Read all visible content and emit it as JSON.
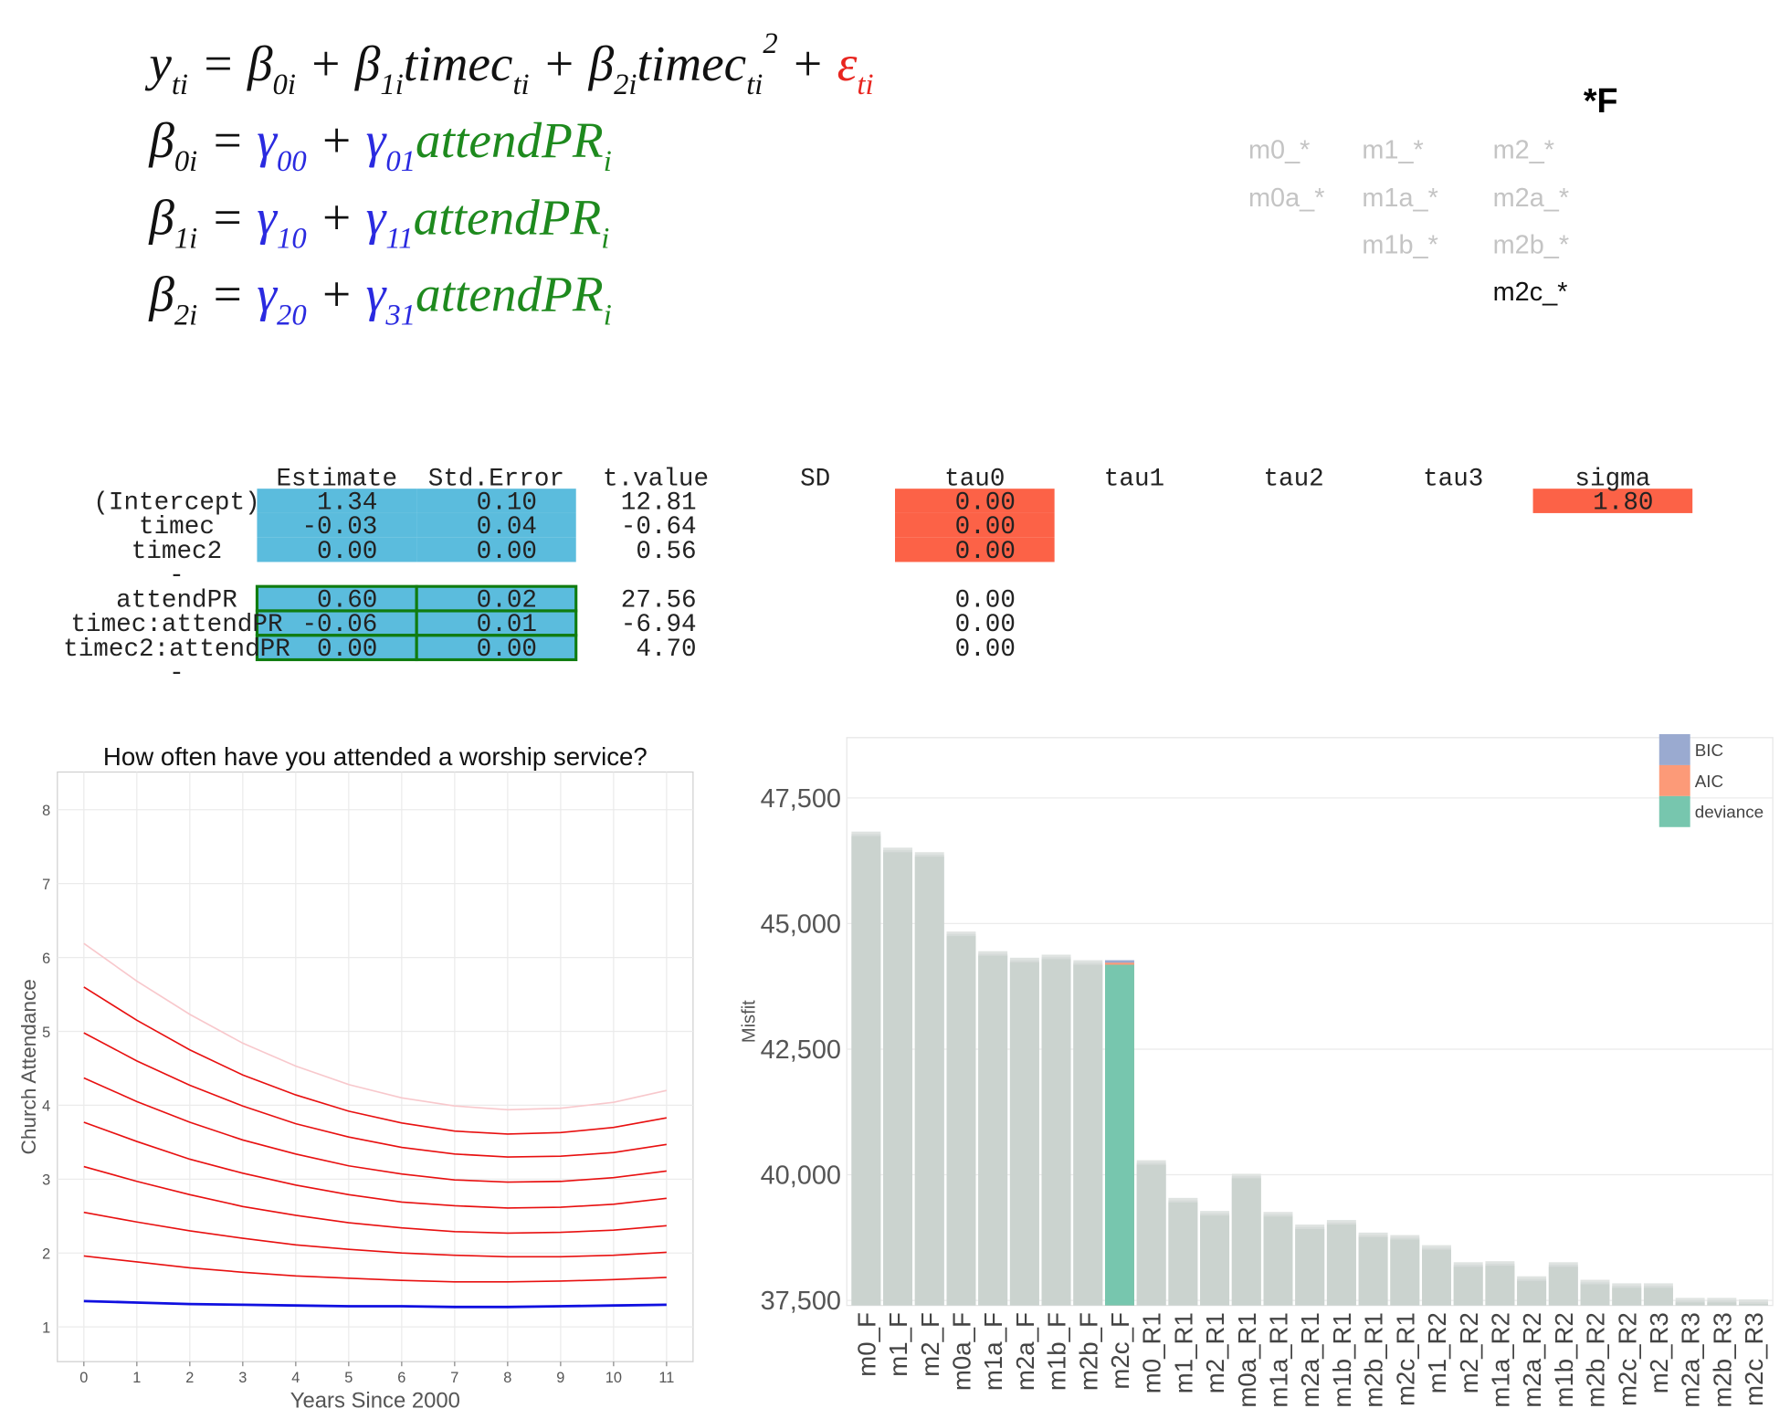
{
  "equations": [
    [
      {
        "text": "y",
        "sub": "ti"
      },
      {
        "text": " = "
      },
      {
        "text": "β",
        "sub": "0i"
      },
      {
        "text": " + "
      },
      {
        "text": "β",
        "sub": "1i"
      },
      {
        "text": "timec",
        "sub": "ti"
      },
      {
        "text": " + "
      },
      {
        "text": "β",
        "sub": "2i"
      },
      {
        "text": "timec",
        "sub": "ti",
        "sup": "2"
      },
      {
        "text": " + "
      },
      {
        "text": "ε",
        "sub": "ti",
        "color": "#e8251f"
      }
    ],
    [
      {
        "text": "β",
        "sub": "0i"
      },
      {
        "text": " = "
      },
      {
        "text": "γ",
        "sub": "00",
        "color": "#2a2ae0"
      },
      {
        "text": " + "
      },
      {
        "text": "γ",
        "sub": "01",
        "color": "#2a2ae0"
      },
      {
        "text": "attendPR",
        "sub": "i",
        "color": "#1e8a1e"
      }
    ],
    [
      {
        "text": "β",
        "sub": "1i"
      },
      {
        "text": " = "
      },
      {
        "text": "γ",
        "sub": "10",
        "color": "#2a2ae0"
      },
      {
        "text": " + "
      },
      {
        "text": "γ",
        "sub": "11",
        "color": "#2a2ae0"
      },
      {
        "text": "attendPR",
        "sub": "i",
        "color": "#1e8a1e"
      }
    ],
    [
      {
        "text": "β",
        "sub": "2i"
      },
      {
        "text": " = "
      },
      {
        "text": "γ",
        "sub": "20",
        "color": "#2a2ae0"
      },
      {
        "text": " + "
      },
      {
        "text": "γ",
        "sub": "31",
        "color": "#2a2ae0"
      },
      {
        "text": "attendPR",
        "sub": "i",
        "color": "#1e8a1e"
      }
    ]
  ],
  "models": {
    "heading": "*F",
    "rows": [
      [
        "m0_*",
        "m1_*",
        "m2_*"
      ],
      [
        "m0a_*",
        "m1a_*",
        "m2a_*"
      ],
      [
        null,
        "m1b_*",
        "m2b_*"
      ],
      [
        null,
        null,
        "m2c_*"
      ]
    ],
    "active": [
      3,
      2
    ]
  },
  "table": {
    "columns": [
      "Estimate",
      "Std.Error",
      "t.value",
      "SD",
      "tau0",
      "tau1",
      "tau2",
      "tau3",
      "sigma"
    ],
    "rows": [
      {
        "name": "(Intercept)",
        "cells": [
          "1.34",
          "0.10",
          "12.81",
          null,
          "0.00",
          null,
          null,
          null,
          "1.80"
        ]
      },
      {
        "name": "timec",
        "cells": [
          "-0.03",
          "0.04",
          "-0.64",
          null,
          "0.00",
          null,
          null,
          null,
          null
        ]
      },
      {
        "name": "timec2",
        "cells": [
          "0.00",
          "0.00",
          "0.56",
          null,
          "0.00",
          null,
          null,
          null,
          null
        ]
      },
      {
        "name": "-",
        "cells": [
          null,
          null,
          null,
          null,
          null,
          null,
          null,
          null,
          null
        ]
      },
      {
        "name": "attendPR",
        "cells": [
          "0.60",
          "0.02",
          "27.56",
          null,
          "0.00",
          null,
          null,
          null,
          null
        ]
      },
      {
        "name": "timec:attendPR",
        "cells": [
          "-0.06",
          "0.01",
          "-6.94",
          null,
          "0.00",
          null,
          null,
          null,
          null
        ]
      },
      {
        "name": "timec2:attendPR",
        "cells": [
          "0.00",
          "0.00",
          "4.70",
          null,
          "0.00",
          null,
          null,
          null,
          null
        ]
      },
      {
        "name": "-",
        "cells": [
          null,
          null,
          null,
          null,
          null,
          null,
          null,
          null,
          null
        ]
      }
    ],
    "highlights": [
      {
        "fill": "#5bbcdd",
        "rows": [
          0,
          1,
          2,
          4,
          5,
          6
        ],
        "cols": [
          0,
          1
        ]
      },
      {
        "fill": "#fc6247",
        "rows": [
          0,
          1,
          2
        ],
        "cols": [
          4
        ]
      },
      {
        "fill": "#fc6247",
        "rows": [
          0
        ],
        "cols": [
          8
        ]
      },
      {
        "stroke": "#107c10",
        "rows": [
          4,
          5,
          6
        ],
        "cols": [
          0,
          1
        ]
      }
    ]
  },
  "chart_data": [
    {
      "type": "line",
      "title": "How often have you attended a worship service?",
      "x_label": "Years Since 2000",
      "y_label": "Church Attendance",
      "x": [
        0,
        1,
        2,
        3,
        4,
        5,
        6,
        7,
        8,
        9,
        10,
        11
      ],
      "series": [
        {
          "color": "#1010e0",
          "values": [
            1.35,
            1.33,
            1.31,
            1.3,
            1.29,
            1.28,
            1.28,
            1.27,
            1.27,
            1.28,
            1.29,
            1.3
          ]
        },
        {
          "color": "#e81010",
          "values": [
            1.96,
            1.88,
            1.8,
            1.74,
            1.69,
            1.66,
            1.63,
            1.61,
            1.61,
            1.62,
            1.64,
            1.67
          ]
        },
        {
          "color": "#e81010",
          "values": [
            2.55,
            2.42,
            2.3,
            2.2,
            2.11,
            2.05,
            2.0,
            1.97,
            1.95,
            1.95,
            1.97,
            2.01
          ]
        },
        {
          "color": "#e81010",
          "values": [
            3.17,
            2.97,
            2.79,
            2.63,
            2.51,
            2.41,
            2.34,
            2.29,
            2.27,
            2.28,
            2.31,
            2.37
          ]
        },
        {
          "color": "#e81010",
          "values": [
            3.77,
            3.51,
            3.27,
            3.08,
            2.92,
            2.79,
            2.69,
            2.64,
            2.61,
            2.62,
            2.66,
            2.74
          ]
        },
        {
          "color": "#e81010",
          "values": [
            4.37,
            4.05,
            3.77,
            3.53,
            3.34,
            3.18,
            3.07,
            2.99,
            2.96,
            2.97,
            3.02,
            3.11
          ]
        },
        {
          "color": "#e81010",
          "values": [
            4.98,
            4.6,
            4.27,
            3.99,
            3.75,
            3.57,
            3.43,
            3.34,
            3.3,
            3.31,
            3.36,
            3.47
          ]
        },
        {
          "color": "#e81010",
          "values": [
            5.6,
            5.15,
            4.75,
            4.41,
            4.14,
            3.92,
            3.76,
            3.65,
            3.61,
            3.63,
            3.7,
            3.83
          ]
        },
        {
          "color": "#f8c8cc",
          "values": [
            6.19,
            5.68,
            5.23,
            4.84,
            4.53,
            4.28,
            4.1,
            3.99,
            3.94,
            3.96,
            4.04,
            4.2
          ]
        }
      ],
      "xlim": [
        -0.5,
        11.5
      ],
      "ylim": [
        0.53,
        8.51
      ],
      "xticks": [
        0,
        1,
        2,
        3,
        4,
        5,
        6,
        7,
        8,
        9,
        10,
        11
      ],
      "yticks": [
        1,
        2,
        3,
        4,
        5,
        6,
        7,
        8
      ],
      "grid": true
    },
    {
      "type": "bar",
      "y_label": "Misfit",
      "categories": [
        "m0_F",
        "m1_F",
        "m2_F",
        "m0a_F",
        "m1a_F",
        "m2a_F",
        "m1b_F",
        "m2b_F",
        "m2c_F",
        "m0_R1",
        "m1_R1",
        "m2_R1",
        "m0a_R1",
        "m1a_R1",
        "m2a_R1",
        "m1b_R1",
        "m2b_R1",
        "m2c_R1",
        "m1_R2",
        "m2_R2",
        "m1a_R2",
        "m2a_R2",
        "m1b_R2",
        "m2b_R2",
        "m2c_R2",
        "m2_R3",
        "m2a_R3",
        "m2b_R3",
        "m2c_R3"
      ],
      "series": [
        {
          "name": "BIC",
          "color": "#9aaad0",
          "muted_color": "#dfe3e1",
          "values": [
            46830,
            46510,
            46420,
            44840,
            44450,
            44320,
            44380,
            44270,
            44270,
            40290,
            39540,
            39280,
            40020,
            39260,
            39010,
            39100,
            38850,
            38800,
            38600,
            38260,
            38280,
            37980,
            38260,
            37910,
            37840,
            37840,
            37550,
            37550,
            37520
          ]
        },
        {
          "name": "AIC",
          "color": "#fc9a78",
          "muted_color": "#d6dbd9",
          "values": [
            46780,
            46460,
            46370,
            44790,
            44400,
            44270,
            44330,
            44220,
            44220,
            40240,
            39490,
            39230,
            39970,
            39210,
            38960,
            39050,
            38800,
            38750,
            38550,
            38210,
            38230,
            37930,
            38210,
            37860,
            37790,
            37790,
            37500,
            37500,
            37470
          ]
        },
        {
          "name": "deviance",
          "color": "#77c6ae",
          "muted_color": "#cbd3cf",
          "values": [
            46740,
            46420,
            46330,
            44750,
            44360,
            44230,
            44290,
            44180,
            44180,
            40200,
            39450,
            39190,
            39930,
            39170,
            38920,
            39010,
            38760,
            38710,
            38510,
            38170,
            38190,
            37890,
            38170,
            37820,
            37750,
            37750,
            37460,
            37460,
            37430
          ]
        }
      ],
      "highlight": 8,
      "overlap": true,
      "ylim": [
        37400,
        48700
      ],
      "yticks": [
        {
          "value": 37500,
          "label": "37,500"
        },
        {
          "value": 40000,
          "label": "40,000"
        },
        {
          "value": 42500,
          "label": "42,500"
        },
        {
          "value": 45000,
          "label": "45,000"
        },
        {
          "value": 47500,
          "label": "47,500"
        }
      ],
      "grid": true,
      "legend": "top-right"
    }
  ]
}
